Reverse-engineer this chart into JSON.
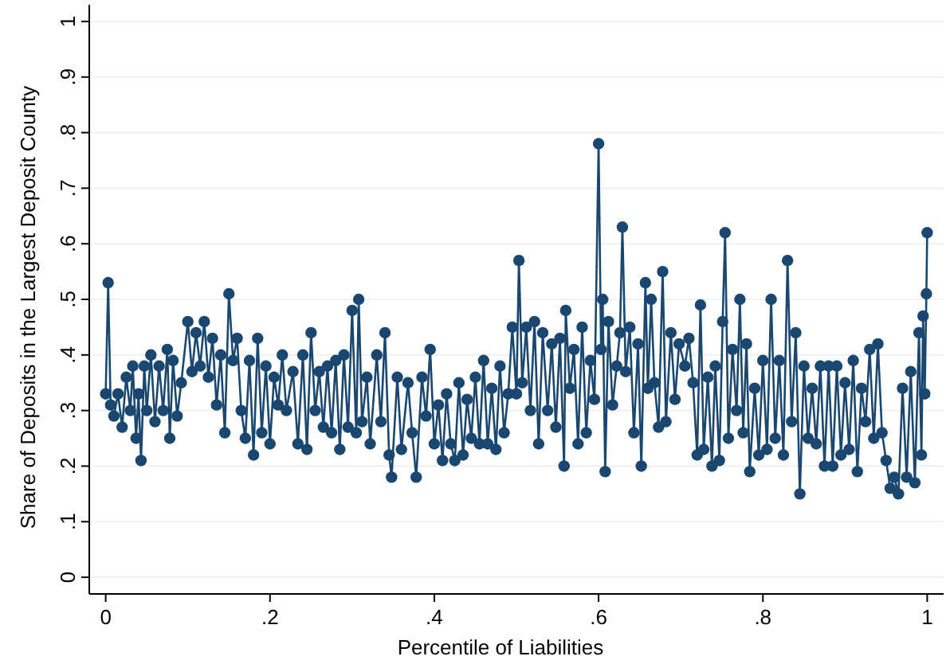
{
  "chart_data": {
    "type": "line",
    "xlabel": "Percentile of Liabilities",
    "ylabel": "Share of Deposits in the Largest Deposit County",
    "xlim": [
      -0.02,
      1.02
    ],
    "ylim": [
      -0.03,
      1.03
    ],
    "xticks": [
      0,
      {
        "value": 0.2,
        "label": ".2"
      },
      {
        "value": 0.4,
        "label": ".4"
      },
      {
        "value": 0.6,
        "label": ".6"
      },
      {
        "value": 0.8,
        "label": ".8"
      },
      1
    ],
    "yticks": [
      0,
      {
        "value": 0.1,
        "label": ".1"
      },
      {
        "value": 0.2,
        "label": ".2"
      },
      {
        "value": 0.3,
        "label": ".3"
      },
      {
        "value": 0.4,
        "label": ".4"
      },
      {
        "value": 0.5,
        "label": ".5"
      },
      {
        "value": 0.6,
        "label": ".6"
      },
      {
        "value": 0.7,
        "label": ".7"
      },
      {
        "value": 0.8,
        "label": ".8"
      },
      {
        "value": 0.9,
        "label": ".9"
      },
      1
    ],
    "grid": "y",
    "marker": "circle",
    "line_style": "solid",
    "x": [
      0,
      0.003,
      0.006,
      0.01,
      0.015,
      0.02,
      0.025,
      0.03,
      0.033,
      0.037,
      0.04,
      0.043,
      0.047,
      0.05,
      0.055,
      0.06,
      0.065,
      0.07,
      0.075,
      0.078,
      0.082,
      0.087,
      0.092,
      0.1,
      0.105,
      0.11,
      0.115,
      0.12,
      0.125,
      0.13,
      0.135,
      0.14,
      0.145,
      0.15,
      0.155,
      0.16,
      0.165,
      0.17,
      0.175,
      0.18,
      0.185,
      0.19,
      0.195,
      0.2,
      0.205,
      0.21,
      0.215,
      0.22,
      0.228,
      0.234,
      0.24,
      0.245,
      0.25,
      0.255,
      0.26,
      0.265,
      0.27,
      0.275,
      0.28,
      0.285,
      0.29,
      0.295,
      0.3,
      0.305,
      0.308,
      0.312,
      0.318,
      0.322,
      0.33,
      0.335,
      0.34,
      0.345,
      0.348,
      0.355,
      0.36,
      0.368,
      0.373,
      0.378,
      0.385,
      0.39,
      0.395,
      0.4,
      0.405,
      0.41,
      0.415,
      0.42,
      0.425,
      0.43,
      0.435,
      0.44,
      0.445,
      0.45,
      0.455,
      0.46,
      0.465,
      0.47,
      0.475,
      0.48,
      0.485,
      0.49,
      0.495,
      0.5,
      0.503,
      0.507,
      0.512,
      0.517,
      0.522,
      0.527,
      0.532,
      0.538,
      0.543,
      0.548,
      0.553,
      0.558,
      0.56,
      0.565,
      0.57,
      0.575,
      0.58,
      0.585,
      0.59,
      0.595,
      0.6,
      0.603,
      0.605,
      0.608,
      0.612,
      0.617,
      0.622,
      0.626,
      0.629,
      0.633,
      0.638,
      0.643,
      0.648,
      0.652,
      0.657,
      0.66,
      0.664,
      0.668,
      0.673,
      0.678,
      0.682,
      0.688,
      0.693,
      0.698,
      0.705,
      0.71,
      0.715,
      0.72,
      0.724,
      0.728,
      0.733,
      0.738,
      0.742,
      0.747,
      0.751,
      0.754,
      0.758,
      0.763,
      0.768,
      0.772,
      0.776,
      0.78,
      0.784,
      0.79,
      0.795,
      0.8,
      0.805,
      0.81,
      0.815,
      0.82,
      0.825,
      0.83,
      0.835,
      0.84,
      0.845,
      0.85,
      0.855,
      0.86,
      0.865,
      0.87,
      0.875,
      0.88,
      0.885,
      0.89,
      0.895,
      0.9,
      0.905,
      0.91,
      0.915,
      0.92,
      0.925,
      0.93,
      0.935,
      0.94,
      0.945,
      0.95,
      0.955,
      0.96,
      0.965,
      0.97,
      0.975,
      0.98,
      0.985,
      0.99,
      0.993,
      0.995,
      0.997,
      0.999,
      1
    ],
    "series": [
      {
        "color": "#1a476f",
        "values": [
          0.33,
          0.53,
          0.31,
          0.29,
          0.33,
          0.27,
          0.36,
          0.3,
          0.38,
          0.25,
          0.33,
          0.21,
          0.38,
          0.3,
          0.4,
          0.28,
          0.38,
          0.3,
          0.41,
          0.25,
          0.39,
          0.29,
          0.35,
          0.46,
          0.37,
          0.44,
          0.38,
          0.46,
          0.36,
          0.43,
          0.31,
          0.4,
          0.26,
          0.51,
          0.39,
          0.43,
          0.3,
          0.25,
          0.39,
          0.22,
          0.43,
          0.26,
          0.38,
          0.24,
          0.36,
          0.31,
          0.4,
          0.3,
          0.37,
          0.24,
          0.4,
          0.23,
          0.44,
          0.3,
          0.37,
          0.27,
          0.38,
          0.26,
          0.39,
          0.23,
          0.4,
          0.27,
          0.48,
          0.26,
          0.5,
          0.28,
          0.36,
          0.24,
          0.4,
          0.28,
          0.44,
          0.22,
          0.18,
          0.36,
          0.23,
          0.35,
          0.26,
          0.18,
          0.36,
          0.29,
          0.41,
          0.24,
          0.31,
          0.21,
          0.33,
          0.24,
          0.21,
          0.35,
          0.22,
          0.32,
          0.25,
          0.36,
          0.24,
          0.39,
          0.24,
          0.34,
          0.23,
          0.38,
          0.26,
          0.33,
          0.45,
          0.33,
          0.57,
          0.35,
          0.45,
          0.3,
          0.46,
          0.24,
          0.44,
          0.3,
          0.42,
          0.27,
          0.43,
          0.2,
          0.48,
          0.34,
          0.41,
          0.24,
          0.45,
          0.26,
          0.39,
          0.32,
          0.78,
          0.41,
          0.5,
          0.19,
          0.46,
          0.31,
          0.38,
          0.44,
          0.63,
          0.37,
          0.45,
          0.26,
          0.42,
          0.2,
          0.53,
          0.34,
          0.5,
          0.35,
          0.27,
          0.55,
          0.28,
          0.44,
          0.32,
          0.42,
          0.38,
          0.43,
          0.35,
          0.22,
          0.49,
          0.23,
          0.36,
          0.2,
          0.38,
          0.21,
          0.46,
          0.62,
          0.25,
          0.41,
          0.3,
          0.5,
          0.26,
          0.42,
          0.19,
          0.34,
          0.22,
          0.39,
          0.23,
          0.5,
          0.25,
          0.39,
          0.22,
          0.57,
          0.28,
          0.44,
          0.15,
          0.38,
          0.25,
          0.34,
          0.24,
          0.38,
          0.2,
          0.38,
          0.2,
          0.38,
          0.22,
          0.35,
          0.23,
          0.39,
          0.19,
          0.34,
          0.28,
          0.41,
          0.25,
          0.42,
          0.26,
          0.21,
          0.16,
          0.18,
          0.15,
          0.34,
          0.18,
          0.37,
          0.17,
          0.44,
          0.22,
          0.47,
          0.33,
          0.51,
          0.62
        ]
      }
    ]
  }
}
